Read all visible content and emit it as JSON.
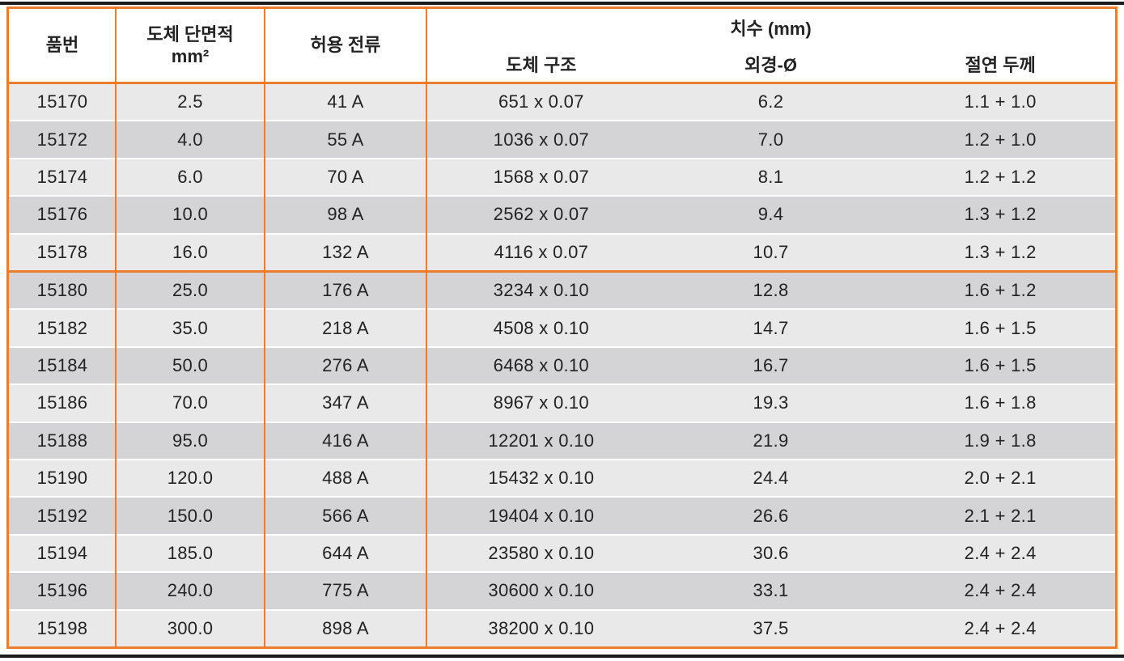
{
  "colors": {
    "accent_orange": "#ED7D2E",
    "row_light": "#E9E9EA",
    "row_dark": "#D4D4D6",
    "rule_dark": "#1C1C1C",
    "text_dark": "#232323"
  },
  "table": {
    "header": {
      "col_part_no": "품번",
      "col_cross_section": "도체 단면적",
      "col_cross_section_unit": "mm²",
      "col_current": "허용 전류",
      "group_dimensions": "치수 (mm)",
      "sub_conductor_structure": "도체 구조",
      "sub_outer_diameter": "외경-Ø",
      "sub_insulation_thickness": "절연 두께"
    },
    "section_start_part_no": "15180",
    "rows": [
      {
        "part_no": "15170",
        "cross_section": "2.5",
        "current": "41 A",
        "conductor_structure": "651 x 0.07",
        "outer_diameter": "6.2",
        "insulation_thickness": "1.1 + 1.0"
      },
      {
        "part_no": "15172",
        "cross_section": "4.0",
        "current": "55 A",
        "conductor_structure": "1036 x 0.07",
        "outer_diameter": "7.0",
        "insulation_thickness": "1.2 + 1.0"
      },
      {
        "part_no": "15174",
        "cross_section": "6.0",
        "current": "70 A",
        "conductor_structure": "1568 x 0.07",
        "outer_diameter": "8.1",
        "insulation_thickness": "1.2 + 1.2"
      },
      {
        "part_no": "15176",
        "cross_section": "10.0",
        "current": "98 A",
        "conductor_structure": "2562 x 0.07",
        "outer_diameter": "9.4",
        "insulation_thickness": "1.3 + 1.2"
      },
      {
        "part_no": "15178",
        "cross_section": "16.0",
        "current": "132 A",
        "conductor_structure": "4116 x 0.07",
        "outer_diameter": "10.7",
        "insulation_thickness": "1.3 + 1.2"
      },
      {
        "part_no": "15180",
        "cross_section": "25.0",
        "current": "176 A",
        "conductor_structure": "3234 x 0.10",
        "outer_diameter": "12.8",
        "insulation_thickness": "1.6 + 1.2"
      },
      {
        "part_no": "15182",
        "cross_section": "35.0",
        "current": "218 A",
        "conductor_structure": "4508 x 0.10",
        "outer_diameter": "14.7",
        "insulation_thickness": "1.6 + 1.5"
      },
      {
        "part_no": "15184",
        "cross_section": "50.0",
        "current": "276 A",
        "conductor_structure": "6468 x 0.10",
        "outer_diameter": "16.7",
        "insulation_thickness": "1.6 + 1.5"
      },
      {
        "part_no": "15186",
        "cross_section": "70.0",
        "current": "347 A",
        "conductor_structure": "8967 x 0.10",
        "outer_diameter": "19.3",
        "insulation_thickness": "1.6 + 1.8"
      },
      {
        "part_no": "15188",
        "cross_section": "95.0",
        "current": "416 A",
        "conductor_structure": "12201 x 0.10",
        "outer_diameter": "21.9",
        "insulation_thickness": "1.9 + 1.8"
      },
      {
        "part_no": "15190",
        "cross_section": "120.0",
        "current": "488 A",
        "conductor_structure": "15432 x 0.10",
        "outer_diameter": "24.4",
        "insulation_thickness": "2.0 + 2.1"
      },
      {
        "part_no": "15192",
        "cross_section": "150.0",
        "current": "566 A",
        "conductor_structure": "19404 x 0.10",
        "outer_diameter": "26.6",
        "insulation_thickness": "2.1 + 2.1"
      },
      {
        "part_no": "15194",
        "cross_section": "185.0",
        "current": "644 A",
        "conductor_structure": "23580 x 0.10",
        "outer_diameter": "30.6",
        "insulation_thickness": "2.4 + 2.4"
      },
      {
        "part_no": "15196",
        "cross_section": "240.0",
        "current": "775 A",
        "conductor_structure": "30600 x 0.10",
        "outer_diameter": "33.1",
        "insulation_thickness": "2.4 + 2.4"
      },
      {
        "part_no": "15198",
        "cross_section": "300.0",
        "current": "898 A",
        "conductor_structure": "38200 x 0.10",
        "outer_diameter": "37.5",
        "insulation_thickness": "2.4 + 2.4"
      }
    ]
  }
}
